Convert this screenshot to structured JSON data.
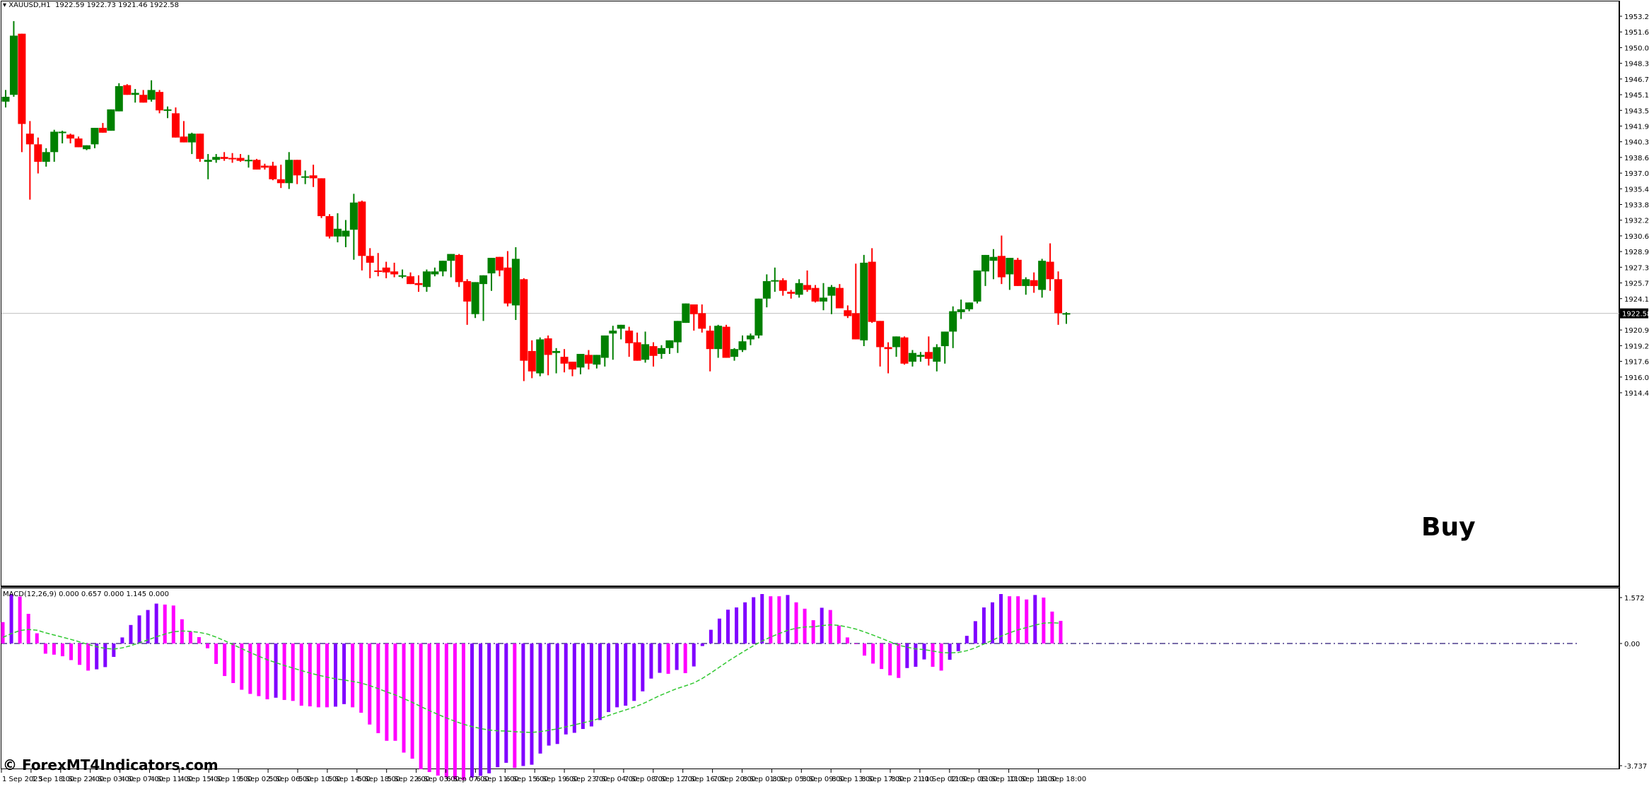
{
  "header": {
    "symbol": "XAUUSD,H1",
    "ohlc_text": "1922.59 1922.73 1921.46 1922.58"
  },
  "indicator": {
    "label": "MACD(12,26,9) 0.000 0.657 0.000 1.145 0.000",
    "axis_ticks": [
      "1.572",
      "0.00",
      "-3.737"
    ]
  },
  "watermark": "© ForexMT4Indicators.com",
  "annotation": {
    "text": "Buy"
  },
  "current_price": "1922.58",
  "colors": {
    "bull": "#008000",
    "bear": "#ff0000",
    "macd_up": "#8000ff",
    "macd_down": "#ff00ff",
    "signal": "#32c832",
    "zero_line": "#4b3c8c",
    "price_line": "#c0c0c0"
  },
  "chart_data": [
    {
      "type": "candlestick",
      "title": "XAUUSD,H1",
      "xlabel": "",
      "ylabel": "",
      "ylim": [
        1914.4,
        1953.2
      ],
      "y_ticks": [
        "1953.20",
        "1951.60",
        "1950.00",
        "1948.35",
        "1946.75",
        "1945.15",
        "1943.50",
        "1941.90",
        "1940.30",
        "1938.65",
        "1937.05",
        "1935.45",
        "1933.80",
        "1932.20",
        "1930.60",
        "1928.95",
        "1927.35",
        "1925.75",
        "1924.10",
        "1922.50",
        "1920.90",
        "1919.25",
        "1917.65",
        "1916.05",
        "1914.40"
      ],
      "x_ticks": [
        "1 Sep 2023",
        "1 Sep 18:00",
        "1 Sep 22:00",
        "4 Sep 03:00",
        "4 Sep 07:00",
        "4 Sep 11:00",
        "4 Sep 15:00",
        "4 Sep 19:00",
        "5 Sep 02:00",
        "5 Sep 06:00",
        "5 Sep 10:00",
        "5 Sep 14:00",
        "5 Sep 18:00",
        "5 Sep 22:00",
        "6 Sep 03:00",
        "6 Sep 07:00",
        "6 Sep 11:00",
        "6 Sep 15:00",
        "6 Sep 19:00",
        "6 Sep 23:00",
        "7 Sep 04:00",
        "7 Sep 08:00",
        "7 Sep 12:00",
        "7 Sep 16:00",
        "7 Sep 20:00",
        "8 Sep 01:00",
        "8 Sep 05:00",
        "8 Sep 09:00",
        "8 Sep 13:00",
        "8 Sep 17:00",
        "8 Sep 21:00",
        "11 Sep 02:00",
        "11 Sep 06:00",
        "11 Sep 10:00",
        "11 Sep 14:00",
        "11 Sep 18:00"
      ],
      "grid": false,
      "candles_ohlc": [
        [
          1944.4,
          1945.6,
          1943.8,
          1944.9
        ],
        [
          1945.1,
          1952.7,
          1944.9,
          1951.2
        ],
        [
          1951.4,
          1949.4,
          1939.2,
          1942.1
        ],
        [
          1941.1,
          1942.4,
          1934.3,
          1940.0
        ],
        [
          1940.0,
          1940.7,
          1937.0,
          1938.2
        ],
        [
          1938.2,
          1939.6,
          1937.7,
          1939.2
        ],
        [
          1939.2,
          1941.5,
          1938.2,
          1941.3
        ],
        [
          1941.3,
          1941.4,
          1940.1,
          1941.3
        ],
        [
          1941.0,
          1941.1,
          1940.1,
          1940.6
        ],
        [
          1940.6,
          1940.8,
          1939.9,
          1939.7
        ],
        [
          1939.5,
          1939.9,
          1939.4,
          1939.9
        ],
        [
          1940.0,
          1941.3,
          1939.6,
          1941.7
        ],
        [
          1941.7,
          1942.2,
          1941.4,
          1941.2
        ],
        [
          1941.4,
          1943.2,
          1941.4,
          1943.6
        ],
        [
          1943.4,
          1946.3,
          1943.9,
          1946.0
        ],
        [
          1946.1,
          1946.2,
          1945.2,
          1945.1
        ],
        [
          1945.1,
          1945.7,
          1944.3,
          1945.3
        ],
        [
          1945.1,
          1945.6,
          1944.6,
          1944.3
        ],
        [
          1944.6,
          1946.6,
          1944.4,
          1945.6
        ],
        [
          1945.4,
          1945.6,
          1943.2,
          1943.5
        ],
        [
          1943.6,
          1943.9,
          1942.7,
          1943.6
        ],
        [
          1943.2,
          1943.8,
          1940.7,
          1940.7
        ],
        [
          1940.8,
          1942.4,
          1940.3,
          1940.2
        ],
        [
          1940.2,
          1941.2,
          1939.0,
          1941.1
        ],
        [
          1941.1,
          1941.0,
          1938.2,
          1938.5
        ],
        [
          1938.2,
          1939.0,
          1936.4,
          1938.4
        ],
        [
          1938.4,
          1939.0,
          1938.1,
          1938.7
        ],
        [
          1938.7,
          1939.2,
          1938.3,
          1938.5
        ],
        [
          1938.6,
          1939.1,
          1938.1,
          1938.5
        ],
        [
          1938.6,
          1939.0,
          1938.2,
          1938.3
        ],
        [
          1938.3,
          1938.9,
          1937.6,
          1938.4
        ],
        [
          1938.4,
          1938.5,
          1937.5,
          1937.4
        ],
        [
          1937.8,
          1938.0,
          1937.4,
          1937.6
        ],
        [
          1937.8,
          1938.2,
          1936.3,
          1936.4
        ],
        [
          1936.4,
          1937.9,
          1935.5,
          1936.0
        ],
        [
          1936.0,
          1939.2,
          1935.4,
          1938.4
        ],
        [
          1938.4,
          1937.9,
          1935.9,
          1936.8
        ],
        [
          1936.7,
          1937.3,
          1935.9,
          1936.7
        ],
        [
          1936.8,
          1937.9,
          1935.6,
          1936.5
        ],
        [
          1936.5,
          1936.5,
          1932.4,
          1932.6
        ],
        [
          1932.6,
          1932.8,
          1930.3,
          1930.5
        ],
        [
          1930.5,
          1932.9,
          1929.9,
          1931.3
        ],
        [
          1930.5,
          1932.2,
          1929.4,
          1931.1
        ],
        [
          1931.2,
          1934.9,
          1928.1,
          1934.0
        ],
        [
          1934.1,
          1934.2,
          1927.0,
          1928.5
        ],
        [
          1928.5,
          1929.3,
          1926.2,
          1927.8
        ],
        [
          1927.0,
          1928.8,
          1926.4,
          1926.9
        ],
        [
          1927.3,
          1927.9,
          1926.2,
          1926.8
        ],
        [
          1926.9,
          1927.8,
          1926.3,
          1926.6
        ],
        [
          1926.5,
          1927.1,
          1926.2,
          1926.5
        ],
        [
          1926.4,
          1926.8,
          1925.8,
          1925.6
        ],
        [
          1925.7,
          1926.5,
          1924.8,
          1925.5
        ],
        [
          1925.3,
          1927.1,
          1924.8,
          1926.9
        ],
        [
          1926.6,
          1927.3,
          1926.4,
          1926.9
        ],
        [
          1926.9,
          1927.6,
          1926.4,
          1928.0
        ],
        [
          1928.0,
          1928.4,
          1926.3,
          1928.7
        ],
        [
          1928.6,
          1928.7,
          1925.3,
          1925.8
        ],
        [
          1925.9,
          1926.1,
          1921.4,
          1923.8
        ],
        [
          1922.5,
          1925.4,
          1922.1,
          1925.8
        ],
        [
          1925.6,
          1925.8,
          1921.8,
          1926.5
        ],
        [
          1926.7,
          1928.1,
          1924.9,
          1928.3
        ],
        [
          1928.4,
          1928.3,
          1926.4,
          1927.0
        ],
        [
          1927.3,
          1929.0,
          1923.3,
          1923.6
        ],
        [
          1923.4,
          1929.4,
          1921.9,
          1928.2
        ],
        [
          1926.1,
          1926.2,
          1915.6,
          1917.7
        ],
        [
          1918.7,
          1919.8,
          1915.9,
          1916.6
        ],
        [
          1916.4,
          1920.1,
          1916.1,
          1919.9
        ],
        [
          1920.0,
          1920.3,
          1916.2,
          1918.3
        ],
        [
          1918.5,
          1919.0,
          1916.4,
          1918.7
        ],
        [
          1918.1,
          1918.9,
          1916.5,
          1917.4
        ],
        [
          1917.6,
          1917.4,
          1916.1,
          1916.8
        ],
        [
          1917.0,
          1918.1,
          1916.3,
          1918.4
        ],
        [
          1918.3,
          1918.8,
          1916.8,
          1917.4
        ],
        [
          1917.3,
          1918.2,
          1916.9,
          1918.3
        ],
        [
          1918.0,
          1920.0,
          1917.1,
          1920.3
        ],
        [
          1920.5,
          1921.3,
          1917.8,
          1920.8
        ],
        [
          1921.0,
          1920.8,
          1919.9,
          1921.4
        ],
        [
          1920.8,
          1921.2,
          1918.1,
          1919.5
        ],
        [
          1919.6,
          1920.6,
          1917.7,
          1917.7
        ],
        [
          1917.8,
          1920.7,
          1917.5,
          1919.4
        ],
        [
          1919.2,
          1919.6,
          1917.1,
          1918.2
        ],
        [
          1918.4,
          1919.3,
          1917.9,
          1919.0
        ],
        [
          1919.0,
          1919.6,
          1918.4,
          1919.8
        ],
        [
          1919.6,
          1920.6,
          1918.5,
          1921.8
        ],
        [
          1921.6,
          1923.6,
          1922.3,
          1923.6
        ],
        [
          1923.5,
          1923.2,
          1920.8,
          1922.5
        ],
        [
          1922.6,
          1923.5,
          1920.6,
          1921.0
        ],
        [
          1920.8,
          1921.3,
          1916.6,
          1918.9
        ],
        [
          1918.9,
          1921.4,
          1918.0,
          1921.3
        ],
        [
          1921.2,
          1921.4,
          1918.6,
          1918.0
        ],
        [
          1918.1,
          1919.0,
          1917.7,
          1918.9
        ],
        [
          1918.8,
          1920.3,
          1918.6,
          1919.7
        ],
        [
          1919.9,
          1920.5,
          1919.3,
          1920.3
        ],
        [
          1920.3,
          1924.0,
          1920.0,
          1924.1
        ],
        [
          1924.1,
          1926.6,
          1923.2,
          1925.9
        ],
        [
          1925.9,
          1927.3,
          1924.8,
          1926.0
        ],
        [
          1926.0,
          1926.2,
          1924.4,
          1924.9
        ],
        [
          1924.8,
          1925.0,
          1924.1,
          1924.6
        ],
        [
          1924.5,
          1926.1,
          1924.2,
          1925.7
        ],
        [
          1925.5,
          1927.0,
          1924.8,
          1925.0
        ],
        [
          1925.2,
          1925.5,
          1923.7,
          1923.8
        ],
        [
          1923.8,
          1925.7,
          1922.9,
          1924.2
        ],
        [
          1924.4,
          1925.5,
          1922.5,
          1925.3
        ],
        [
          1925.2,
          1925.6,
          1923.2,
          1923.1
        ],
        [
          1922.9,
          1923.4,
          1922.1,
          1922.3
        ],
        [
          1922.6,
          1927.7,
          1922.6,
          1919.9
        ],
        [
          1919.8,
          1928.6,
          1919.2,
          1927.8
        ],
        [
          1927.9,
          1929.3,
          1921.6,
          1921.7
        ],
        [
          1921.8,
          1921.4,
          1917.1,
          1919.1
        ],
        [
          1919.1,
          1919.6,
          1916.4,
          1918.9
        ],
        [
          1919.1,
          1920.0,
          1918.1,
          1920.2
        ],
        [
          1920.1,
          1920.2,
          1917.3,
          1917.4
        ],
        [
          1917.6,
          1918.8,
          1917.1,
          1918.5
        ],
        [
          1918.1,
          1918.6,
          1917.6,
          1918.3
        ],
        [
          1918.6,
          1920.2,
          1917.2,
          1917.9
        ],
        [
          1917.6,
          1919.4,
          1916.6,
          1919.1
        ],
        [
          1919.2,
          1919.5,
          1917.4,
          1920.7
        ],
        [
          1920.7,
          1923.3,
          1919.0,
          1922.8
        ],
        [
          1922.7,
          1924.0,
          1922.0,
          1923.0
        ],
        [
          1923.0,
          1923.7,
          1922.8,
          1923.7
        ],
        [
          1923.8,
          1924.5,
          1923.6,
          1927.0
        ],
        [
          1926.9,
          1928.0,
          1925.4,
          1928.6
        ],
        [
          1928.0,
          1929.2,
          1926.1,
          1928.4
        ],
        [
          1928.5,
          1930.6,
          1925.6,
          1926.3
        ],
        [
          1926.6,
          1928.3,
          1925.0,
          1928.3
        ],
        [
          1928.1,
          1928.3,
          1925.5,
          1925.4
        ],
        [
          1925.4,
          1926.3,
          1924.5,
          1926.1
        ],
        [
          1926.0,
          1926.8,
          1924.7,
          1925.4
        ],
        [
          1925.0,
          1928.2,
          1924.2,
          1928.0
        ],
        [
          1927.9,
          1929.8,
          1924.9,
          1926.1
        ],
        [
          1926.1,
          1926.9,
          1921.4,
          1922.6
        ],
        [
          1922.6,
          1922.7,
          1921.5,
          1922.6
        ]
      ],
      "macd_histogram": [
        0.67,
        1.55,
        1.47,
        0.93,
        0.32,
        -0.32,
        -0.35,
        -0.4,
        -0.52,
        -0.67,
        -0.85,
        -0.81,
        -0.74,
        -0.42,
        0.19,
        0.58,
        0.88,
        1.05,
        1.25,
        1.22,
        1.19,
        0.76,
        0.37,
        0.2,
        -0.15,
        -0.64,
        -1.02,
        -1.24,
        -1.45,
        -1.58,
        -1.65,
        -1.75,
        -1.7,
        -1.77,
        -1.8,
        -1.95,
        -1.97,
        -2.0,
        -2.0,
        -1.98,
        -1.9,
        -2.0,
        -2.17,
        -2.54,
        -2.81,
        -3.05,
        -3.05,
        -3.42,
        -3.61,
        -3.94,
        -4.03,
        -4.14,
        -4.2,
        -4.26,
        -4.28,
        -4.2,
        -4.15,
        -4.07,
        -3.88,
        -3.74,
        -3.9,
        -3.84,
        -3.8,
        -3.45,
        -3.2,
        -3.15,
        -2.85,
        -2.8,
        -2.68,
        -2.6,
        -2.4,
        -2.15,
        -2.0,
        -1.95,
        -1.8,
        -1.5,
        -1.1,
        -0.92,
        -0.95,
        -0.83,
        -0.93,
        -0.72,
        -0.08,
        0.43,
        0.78,
        1.06,
        1.13,
        1.29,
        1.45,
        1.55,
        1.48,
        1.48,
        1.52,
        1.29,
        1.09,
        0.73,
        1.12,
        1.05,
        0.56,
        0.19,
        -0.02,
        -0.38,
        -0.63,
        -0.8,
        -1.0,
        -1.08,
        -0.77,
        -0.73,
        -0.5,
        -0.73,
        -0.85,
        -0.51,
        -0.24,
        0.24,
        0.7,
        1.13,
        1.29,
        1.55,
        1.48,
        1.48,
        1.38,
        1.52,
        1.44,
        1.0,
        0.71
      ],
      "signal_line": "smoothed moving average of MACD, dashed green",
      "axis_ticks_macd": [
        1.572,
        0.0,
        -3.737
      ],
      "annotations": [
        {
          "text": "Buy",
          "near": "11 Sep 02:00"
        }
      ],
      "current_price_line": 1922.58
    }
  ]
}
